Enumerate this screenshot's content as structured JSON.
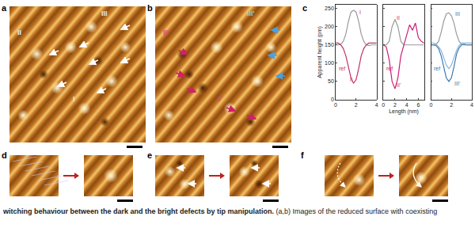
{
  "panels": {
    "a": {
      "label": "a",
      "marks": [
        "II",
        "III",
        "I"
      ]
    },
    "b": {
      "label": "b",
      "marks": [
        "II'",
        "III'",
        "I'"
      ]
    },
    "c": {
      "label": "c"
    },
    "d": {
      "label": "d"
    },
    "e": {
      "label": "e"
    },
    "f": {
      "label": "f"
    }
  },
  "caption": {
    "bold": "witching behaviour between the dark and the bright defects by tip manipulation.",
    "text": " (a,b) Images of the reduced surface with coexisting"
  },
  "chart_data": [
    {
      "type": "line",
      "xlabel": "",
      "ylabel": "Apparent height (pm)",
      "tick_labels": true,
      "x": [
        0,
        0.25,
        0.5,
        0.75,
        1,
        1.25,
        1.5,
        1.75,
        2,
        2.25,
        2.5,
        2.75,
        3,
        3.25,
        3.5,
        3.75,
        4
      ],
      "series": [
        {
          "color": "#9a9a9a",
          "values": [
            150,
            150,
            152,
            160,
            180,
            215,
            240,
            245,
            240,
            215,
            180,
            160,
            150,
            148,
            150,
            150,
            150
          ]
        },
        {
          "color": "#c0306a",
          "values": [
            155,
            155,
            150,
            140,
            120,
            90,
            60,
            45,
            55,
            85,
            120,
            140,
            150,
            155,
            155,
            155,
            155
          ]
        }
      ],
      "annotations": [
        {
          "text": "I",
          "x": 2.4,
          "y": 240
        },
        {
          "text": "I'",
          "x": 1.5,
          "y": 55
        },
        {
          "text": "ref",
          "x": 0.6,
          "y": 85
        }
      ],
      "xlim": [
        0,
        4
      ],
      "xticks": [
        0,
        2,
        4
      ],
      "ylim": [
        0,
        260
      ],
      "yticks": [
        0,
        50,
        100,
        150,
        200,
        250
      ]
    },
    {
      "type": "line",
      "xlabel": "Length (nm)",
      "ylabel": "",
      "tick_labels": "x",
      "x": [
        0,
        0.5,
        1,
        1.5,
        2,
        2.5,
        3,
        3.5,
        4,
        4.5,
        5,
        5.5,
        6,
        6.5,
        7
      ],
      "series": [
        {
          "color": "#9a9a9a",
          "values": [
            150,
            150,
            160,
            200,
            220,
            200,
            160,
            150,
            150,
            150,
            150,
            150,
            150,
            150,
            150
          ]
        },
        {
          "color": "#c81e78",
          "values": [
            150,
            145,
            110,
            50,
            30,
            60,
            120,
            150,
            180,
            205,
            190,
            210,
            170,
            160,
            155
          ]
        }
      ],
      "annotations": [
        {
          "text": "II",
          "x": 2.6,
          "y": 225
        },
        {
          "text": "II'",
          "x": 2.6,
          "y": 40
        },
        {
          "text": "ref",
          "x": 1.0,
          "y": 85
        }
      ],
      "xlim": [
        0,
        7
      ],
      "xticks": [
        0,
        2,
        4,
        6
      ],
      "ylim": [
        0,
        260
      ],
      "yticks": [
        0,
        50,
        100,
        150,
        200,
        250
      ]
    },
    {
      "type": "line",
      "xlabel": "",
      "ylabel": "",
      "tick_labels": "x",
      "x": [
        0,
        0.25,
        0.5,
        0.75,
        1,
        1.25,
        1.5,
        1.75,
        2,
        2.25,
        2.5,
        2.75,
        3,
        3.25,
        3.5,
        3.75,
        4
      ],
      "series": [
        {
          "color": "#9a9a9a",
          "values": [
            150,
            150,
            152,
            160,
            185,
            215,
            235,
            238,
            230,
            210,
            180,
            160,
            152,
            150,
            150,
            150,
            150
          ]
        },
        {
          "color": "#3a78b0",
          "values": [
            150,
            150,
            148,
            140,
            120,
            90,
            60,
            50,
            60,
            90,
            125,
            142,
            150,
            152,
            150,
            150,
            150
          ]
        },
        {
          "color": "#8ab8dc",
          "values": [
            155,
            155,
            152,
            145,
            135,
            115,
            95,
            85,
            95,
            115,
            135,
            148,
            155,
            155,
            155,
            155,
            155
          ]
        }
      ],
      "annotations": [
        {
          "text": "III",
          "x": 2.6,
          "y": 235
        },
        {
          "text": "III'",
          "x": 2.6,
          "y": 45
        },
        {
          "text": "ref",
          "x": 0.6,
          "y": 85
        }
      ],
      "xlim": [
        0,
        4
      ],
      "xticks": [
        0,
        2,
        4
      ],
      "ylim": [
        0,
        260
      ],
      "yticks": [
        0,
        50,
        100,
        150,
        200,
        250
      ]
    }
  ]
}
